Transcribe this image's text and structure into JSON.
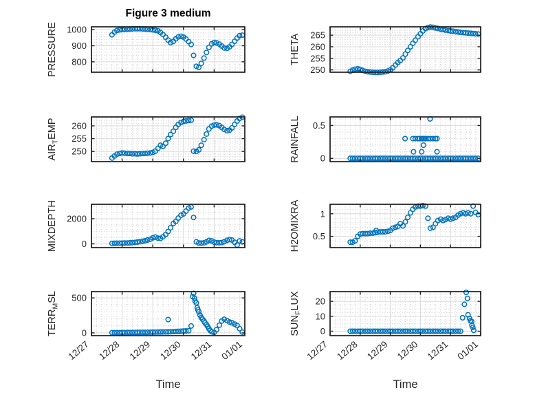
{
  "figure": {
    "title": "Figure 3 medium"
  },
  "style": {
    "marker_color": "#0072BD",
    "axes_color": "#1c1c1c",
    "major_grid_color": "#d9d9d9",
    "minor_grid_color": "#cccccc",
    "text_color": "#262626",
    "background": "#ffffff"
  },
  "time_axis": {
    "xlabel": "Time",
    "xlim": [
      0,
      5
    ],
    "minor_per_day": 6,
    "tick_positions": [
      0,
      1,
      2,
      3,
      4,
      5
    ],
    "tick_labels": [
      "12/27",
      "12/28",
      "12/29",
      "12/30",
      "12/31",
      "01/01"
    ],
    "x_values": [
      0.67,
      0.75,
      0.83,
      0.92,
      1.0,
      1.08,
      1.17,
      1.25,
      1.33,
      1.42,
      1.5,
      1.58,
      1.67,
      1.75,
      1.83,
      1.92,
      2.0,
      2.08,
      2.17,
      2.25,
      2.33,
      2.42,
      2.5,
      2.58,
      2.67,
      2.75,
      2.83,
      2.92,
      3.0,
      3.08,
      3.17,
      3.25,
      3.33,
      3.42,
      3.5,
      3.58,
      3.67,
      3.75,
      3.83,
      3.92,
      4.0,
      4.08,
      4.17,
      4.25,
      4.33,
      4.42,
      4.5,
      4.58,
      4.67,
      4.75,
      4.83,
      4.92
    ]
  },
  "chart_data": [
    {
      "id": "pressure",
      "name": "PRESSURE",
      "type": "scatter",
      "row": 0,
      "col": 0,
      "ylabel_parts": [
        {
          "t": "PRESSURE"
        }
      ],
      "yticks": [
        800,
        900,
        1000
      ],
      "ytick_labels": [
        "800",
        "900",
        "1000"
      ],
      "ylim": [
        735,
        1018
      ],
      "y_minor": 20,
      "y": [
        968,
        985,
        995,
        999,
        1001,
        1002,
        1003,
        1004,
        1005,
        1006,
        1006,
        1006,
        1005,
        1004,
        1003,
        1001,
        999,
        997,
        993,
        983,
        970,
        953,
        935,
        920,
        927,
        943,
        955,
        959,
        954,
        942,
        925,
        908,
        840,
        772,
        765,
        790,
        823,
        858,
        890,
        912,
        920,
        918,
        910,
        898,
        886,
        884,
        893,
        908,
        928,
        948,
        963,
        966
      ]
    },
    {
      "id": "theta",
      "name": "THETA",
      "type": "scatter",
      "row": 0,
      "col": 1,
      "ylabel_parts": [
        {
          "t": "THETA"
        }
      ],
      "yticks": [
        250,
        255,
        260,
        265
      ],
      "ytick_labels": [
        "250",
        "255",
        "260",
        "265"
      ],
      "ylim": [
        249,
        268.6
      ],
      "y_minor": 1,
      "y": [
        249.4,
        249.9,
        250.3,
        250.5,
        250.2,
        249.8,
        249.4,
        249.2,
        249.1,
        249.0,
        248.9,
        248.9,
        249.0,
        249.1,
        249.2,
        249.5,
        250.0,
        250.9,
        252.1,
        253.2,
        254.0,
        255.2,
        256.8,
        258.4,
        260.0,
        261.5,
        262.8,
        264.3,
        265.6,
        266.8,
        267.8,
        268.3,
        268.5,
        268.4,
        268.1,
        267.9,
        267.6,
        267.4,
        267.2,
        267.0,
        266.8,
        266.7,
        266.5,
        266.4,
        266.2,
        266.1,
        266.0,
        265.9,
        265.8,
        265.7,
        265.6,
        265.5
      ]
    },
    {
      "id": "air-temp",
      "name": "AIR_TEMP",
      "type": "scatter",
      "row": 1,
      "col": 0,
      "ylabel_parts": [
        {
          "t": "AIR"
        },
        {
          "t": "T",
          "sub": true
        },
        {
          "t": "EMP"
        }
      ],
      "yticks": [
        250,
        255,
        260
      ],
      "ytick_labels": [
        "250",
        "255",
        "260"
      ],
      "ylim": [
        246,
        263.5
      ],
      "y_minor": 1,
      "y": [
        247.4,
        248.2,
        248.9,
        249.2,
        249.4,
        249.3,
        249.2,
        249.2,
        249.1,
        249.1,
        249.0,
        249.1,
        249.2,
        249.2,
        249.3,
        249.4,
        249.6,
        250.1,
        251.2,
        252.4,
        252.0,
        253.2,
        255.0,
        256.6,
        257.9,
        259.4,
        260.6,
        261.3,
        261.7,
        261.9,
        262.1,
        262.2,
        250.1,
        250.0,
        250.6,
        252.4,
        254.6,
        256.8,
        258.8,
        259.9,
        260.3,
        260.4,
        260.1,
        259.4,
        258.6,
        258.1,
        258.3,
        259.2,
        260.6,
        261.9,
        262.9,
        263.4
      ]
    },
    {
      "id": "rainfall",
      "name": "RAINFALL",
      "type": "scatter",
      "row": 1,
      "col": 1,
      "ylabel_parts": [
        {
          "t": "RAINFALL"
        }
      ],
      "yticks": [
        0,
        0.5
      ],
      "ytick_labels": [
        "0",
        "0.5"
      ],
      "ylim": [
        -0.05,
        0.63
      ],
      "y_minor": 0.1,
      "y": [
        0,
        0,
        0,
        0,
        0,
        0,
        0,
        0,
        0,
        0,
        0,
        0,
        0,
        0,
        0,
        0,
        0,
        0,
        0,
        0,
        0,
        0,
        0,
        0,
        0,
        0,
        0,
        0,
        0,
        0,
        0,
        0,
        0,
        0,
        0,
        0,
        0,
        0,
        0,
        0,
        0,
        0,
        0,
        0,
        0,
        0,
        0,
        0,
        0,
        0,
        0,
        0
      ],
      "extra_points": [
        [
          2.49,
          0.3
        ],
        [
          2.75,
          0.3
        ],
        [
          2.83,
          0.3
        ],
        [
          2.92,
          0.3
        ],
        [
          2.97,
          0.3
        ],
        [
          3.04,
          0.3
        ],
        [
          3.08,
          0.3
        ],
        [
          3.13,
          0.3
        ],
        [
          3.17,
          0.3
        ],
        [
          3.25,
          0.3
        ],
        [
          3.33,
          0.3
        ],
        [
          3.42,
          0.3
        ],
        [
          3.5,
          0.3
        ],
        [
          3.55,
          0.3
        ],
        [
          2.77,
          0.1
        ],
        [
          3.04,
          0.1
        ],
        [
          3.1,
          0.2
        ],
        [
          3.55,
          0.1
        ],
        [
          3.32,
          0.6
        ]
      ]
    },
    {
      "id": "mixdepth",
      "name": "MIXDEPTH",
      "type": "scatter",
      "row": 2,
      "col": 0,
      "ylabel_parts": [
        {
          "t": "MIXDEPTH"
        }
      ],
      "yticks": [
        0,
        2000
      ],
      "ytick_labels": [
        "0",
        "2000"
      ],
      "ylim": [
        -300,
        3150
      ],
      "y_minor": 500,
      "y": [
        40,
        45,
        50,
        55,
        60,
        65,
        70,
        80,
        95,
        115,
        140,
        170,
        210,
        255,
        305,
        370,
        480,
        540,
        450,
        430,
        560,
        740,
        980,
        1280,
        1620,
        1780,
        2050,
        2280,
        2380,
        2600,
        2850,
        2940,
        2100,
        160,
        70,
        60,
        80,
        160,
        270,
        240,
        140,
        90,
        85,
        100,
        170,
        280,
        340,
        300,
        120,
        -90,
        230,
        160
      ]
    },
    {
      "id": "h2omixra",
      "name": "H2OMIXRA",
      "type": "scatter",
      "row": 2,
      "col": 1,
      "ylabel_parts": [
        {
          "t": "H2OMIXRA"
        }
      ],
      "yticks": [
        0.5,
        1
      ],
      "ytick_labels": [
        "0.5",
        "1"
      ],
      "ylim": [
        0.25,
        1.21
      ],
      "y_minor": 0.1,
      "y": [
        0.37,
        0.37,
        0.4,
        0.5,
        0.55,
        0.56,
        0.56,
        0.56,
        0.57,
        0.57,
        0.58,
        0.59,
        0.6,
        0.6,
        0.6,
        0.61,
        0.63,
        0.68,
        0.7,
        0.72,
        0.78,
        0.73,
        0.82,
        0.92,
        1.02,
        1.1,
        1.15,
        1.17,
        1.17,
        1.18,
        1.17,
        0.9,
        0.68,
        0.7,
        0.78,
        0.85,
        0.88,
        0.85,
        0.87,
        0.9,
        0.88,
        0.9,
        0.92,
        0.97,
        1.0,
        1.02,
        1.0,
        1.02,
        1.0,
        1.17,
        1.03,
        0.98
      ],
      "extra_points": [
        [
          1.53,
          0.63
        ]
      ]
    },
    {
      "id": "terr-msl",
      "name": "TERR_MSL",
      "type": "scatter",
      "row": 3,
      "col": 0,
      "ylabel_parts": [
        {
          "t": "TERR"
        },
        {
          "t": "M",
          "sub": true
        },
        {
          "t": "SL"
        }
      ],
      "yticks": [
        0,
        500
      ],
      "ytick_labels": [
        "0",
        "500"
      ],
      "ylim": [
        -40,
        590
      ],
      "y_minor": 100,
      "y": [
        2,
        2,
        3,
        3,
        4,
        4,
        5,
        5,
        5,
        6,
        6,
        7,
        7,
        8,
        8,
        9,
        10,
        10,
        11,
        12,
        13,
        14,
        14,
        16,
        18,
        20,
        22,
        24,
        26,
        28,
        30,
        98,
        565,
        430,
        300,
        220,
        170,
        120,
        60,
        15,
        5,
        45,
        110,
        170,
        195,
        175,
        155,
        145,
        125,
        105,
        60,
        10
      ],
      "extra_points": [
        [
          2.5,
          190
        ],
        [
          3.3,
          520
        ],
        [
          3.36,
          495
        ],
        [
          3.38,
          455
        ],
        [
          3.45,
          360
        ],
        [
          3.47,
          330
        ],
        [
          3.54,
          255
        ],
        [
          3.62,
          195
        ],
        [
          3.7,
          145
        ],
        [
          3.79,
          90
        ],
        [
          3.87,
          35
        ]
      ]
    },
    {
      "id": "sun-flux",
      "name": "SUN_FLUX",
      "type": "scatter",
      "row": 3,
      "col": 1,
      "ylabel_parts": [
        {
          "t": "SUN"
        },
        {
          "t": "F",
          "sub": true
        },
        {
          "t": "LUX"
        }
      ],
      "yticks": [
        0,
        10,
        20
      ],
      "ytick_labels": [
        "0",
        "10",
        "20"
      ],
      "ylim": [
        -3,
        26.5
      ],
      "y_minor": 2.5,
      "y": [
        0,
        0,
        0,
        0,
        0,
        0,
        0,
        0,
        0,
        0,
        0,
        0,
        0,
        0,
        0,
        0,
        0,
        0,
        0,
        0,
        0,
        0,
        0,
        0,
        0,
        0,
        0,
        0,
        0,
        0,
        0,
        0,
        0,
        0,
        0,
        0,
        0,
        0,
        0,
        0,
        0,
        0,
        0,
        0,
        0,
        null,
        null,
        null,
        null,
        null,
        null,
        null
      ],
      "extra_points": [
        [
          4.4,
          9
        ],
        [
          4.46,
          18
        ],
        [
          4.52,
          26
        ],
        [
          4.56,
          22
        ],
        [
          4.58,
          11
        ],
        [
          4.63,
          8.5
        ],
        [
          4.66,
          7
        ],
        [
          4.7,
          6.5
        ],
        [
          4.71,
          4
        ],
        [
          4.74,
          2.5
        ],
        [
          4.77,
          0.5
        ]
      ]
    }
  ]
}
